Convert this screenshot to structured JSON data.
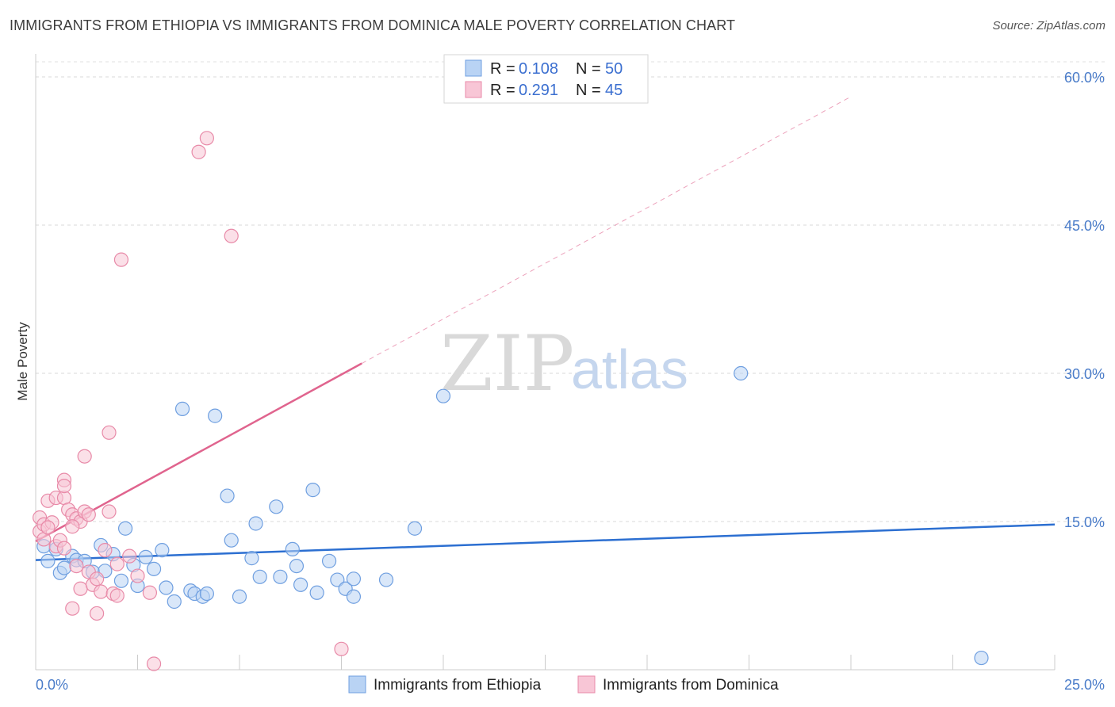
{
  "title": "IMMIGRANTS FROM ETHIOPIA VS IMMIGRANTS FROM DOMINICA MALE POVERTY CORRELATION CHART",
  "source": "Source: ZipAtlas.com",
  "watermark": {
    "zip": "ZIP",
    "atlas": "atlas"
  },
  "legend": {
    "r_label": "R =",
    "n_label": "N =",
    "entries": [
      {
        "r": "0.108",
        "n": "50",
        "fill": "#b9d3f4",
        "stroke": "#6f9fe0"
      },
      {
        "r": "0.291",
        "n": "45",
        "fill": "#f8c6d6",
        "stroke": "#e88aa8"
      }
    ]
  },
  "chart_data": {
    "type": "scatter",
    "title": "IMMIGRANTS FROM ETHIOPIA VS IMMIGRANTS FROM DOMINICA MALE POVERTY CORRELATION CHART",
    "xlabel": "",
    "ylabel": "Male Poverty",
    "xlim": [
      0,
      25
    ],
    "ylim": [
      0,
      60
    ],
    "x_ticks": [
      "0.0%",
      "25.0%"
    ],
    "y_ticks": [
      {
        "value": 15,
        "label": "15.0%"
      },
      {
        "value": 30,
        "label": "30.0%"
      },
      {
        "value": 45,
        "label": "45.0%"
      },
      {
        "value": 60,
        "label": "60.0%"
      }
    ],
    "grid": true,
    "legend_position": "top-center",
    "series": [
      {
        "name": "Immigrants from Ethiopia",
        "color": "#6f9fe0",
        "fill": "#b9d3f4",
        "line_color": "#2c6fd1",
        "trend": {
          "x": [
            0,
            25
          ],
          "y": [
            11.1,
            14.7
          ]
        },
        "points": [
          [
            0.2,
            12.5
          ],
          [
            0.3,
            11.0
          ],
          [
            0.5,
            12.2
          ],
          [
            0.6,
            9.8
          ],
          [
            0.7,
            10.3
          ],
          [
            0.9,
            11.5
          ],
          [
            1.0,
            11.1
          ],
          [
            1.2,
            11.0
          ],
          [
            1.4,
            9.9
          ],
          [
            1.6,
            12.6
          ],
          [
            1.7,
            10.0
          ],
          [
            1.9,
            11.7
          ],
          [
            2.1,
            9.0
          ],
          [
            2.2,
            14.3
          ],
          [
            2.4,
            10.6
          ],
          [
            2.5,
            8.5
          ],
          [
            2.7,
            11.4
          ],
          [
            2.9,
            10.2
          ],
          [
            3.1,
            12.1
          ],
          [
            3.2,
            8.3
          ],
          [
            3.4,
            6.9
          ],
          [
            3.6,
            26.4
          ],
          [
            3.8,
            8.0
          ],
          [
            3.9,
            7.7
          ],
          [
            4.1,
            7.4
          ],
          [
            4.2,
            7.7
          ],
          [
            4.4,
            25.7
          ],
          [
            4.7,
            17.6
          ],
          [
            4.8,
            13.1
          ],
          [
            5.0,
            7.4
          ],
          [
            5.3,
            11.3
          ],
          [
            5.4,
            14.8
          ],
          [
            5.5,
            9.4
          ],
          [
            5.9,
            16.5
          ],
          [
            6.0,
            9.4
          ],
          [
            6.3,
            12.2
          ],
          [
            6.4,
            10.5
          ],
          [
            6.5,
            8.6
          ],
          [
            6.8,
            18.2
          ],
          [
            6.9,
            7.8
          ],
          [
            7.2,
            11.0
          ],
          [
            7.4,
            9.1
          ],
          [
            7.6,
            8.2
          ],
          [
            7.8,
            9.2
          ],
          [
            7.8,
            7.4
          ],
          [
            8.6,
            9.1
          ],
          [
            9.3,
            14.3
          ],
          [
            10.0,
            27.7
          ],
          [
            17.3,
            30.0
          ],
          [
            23.2,
            1.2
          ]
        ]
      },
      {
        "name": "Immigrants from Dominica",
        "color": "#e88aa8",
        "fill": "#f8c6d6",
        "line_color": "#e0648e",
        "trend": {
          "x": [
            0,
            8.0
          ],
          "y": [
            13.0,
            31.0
          ]
        },
        "trend_extension": {
          "x": [
            8.0,
            20.0
          ],
          "y": [
            31.0,
            58.0
          ]
        },
        "points": [
          [
            0.1,
            14.0
          ],
          [
            0.1,
            15.4
          ],
          [
            0.2,
            14.7
          ],
          [
            0.2,
            13.2
          ],
          [
            0.3,
            17.1
          ],
          [
            0.4,
            14.9
          ],
          [
            0.5,
            12.5
          ],
          [
            0.5,
            17.4
          ],
          [
            0.6,
            13.1
          ],
          [
            0.7,
            12.3
          ],
          [
            0.7,
            19.2
          ],
          [
            0.7,
            17.4
          ],
          [
            0.8,
            16.2
          ],
          [
            0.7,
            18.6
          ],
          [
            0.9,
            6.2
          ],
          [
            0.9,
            15.7
          ],
          [
            1.0,
            15.3
          ],
          [
            1.1,
            8.2
          ],
          [
            1.0,
            10.5
          ],
          [
            1.1,
            15.0
          ],
          [
            1.2,
            16.0
          ],
          [
            1.2,
            21.6
          ],
          [
            1.3,
            15.7
          ],
          [
            1.3,
            9.9
          ],
          [
            1.4,
            8.6
          ],
          [
            1.5,
            9.2
          ],
          [
            1.5,
            5.7
          ],
          [
            1.6,
            7.9
          ],
          [
            1.7,
            12.1
          ],
          [
            1.8,
            24.0
          ],
          [
            1.8,
            16.0
          ],
          [
            1.9,
            7.7
          ],
          [
            2.0,
            10.7
          ],
          [
            2.0,
            7.5
          ],
          [
            2.1,
            41.5
          ],
          [
            2.3,
            11.5
          ],
          [
            2.5,
            9.5
          ],
          [
            2.8,
            7.8
          ],
          [
            2.9,
            0.6
          ],
          [
            4.0,
            52.4
          ],
          [
            4.2,
            53.8
          ],
          [
            4.8,
            43.9
          ],
          [
            7.5,
            2.1
          ],
          [
            0.3,
            14.4
          ],
          [
            0.9,
            14.5
          ]
        ]
      }
    ]
  }
}
